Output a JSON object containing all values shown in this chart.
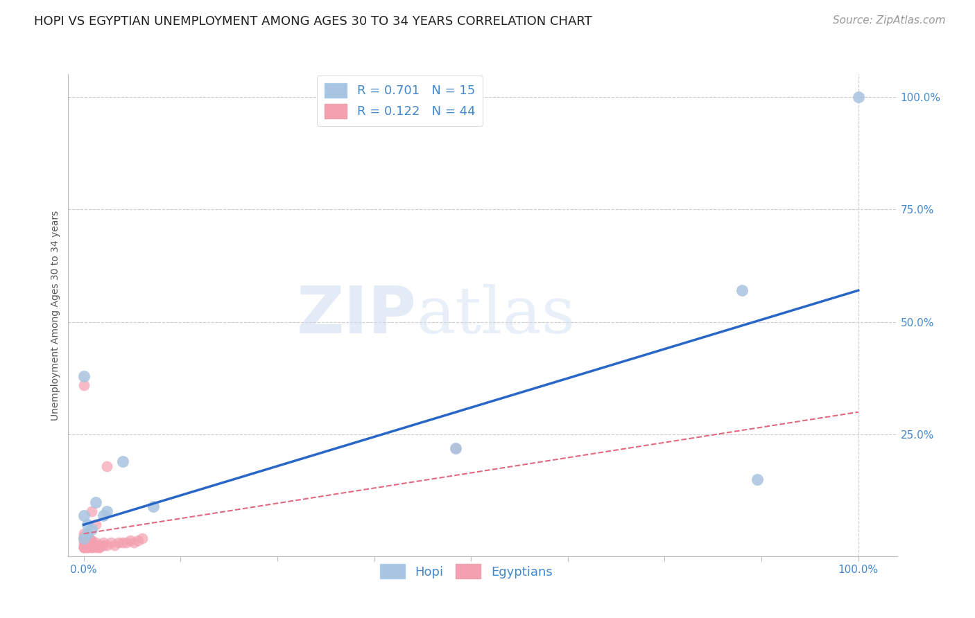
{
  "title": "HOPI VS EGYPTIAN UNEMPLOYMENT AMONG AGES 30 TO 34 YEARS CORRELATION CHART",
  "source": "Source: ZipAtlas.com",
  "ylabel": "Unemployment Among Ages 30 to 34 years",
  "xlim": [
    -0.02,
    1.05
  ],
  "ylim": [
    -0.02,
    1.05
  ],
  "xticks": [
    0.0,
    0.125,
    0.25,
    0.375,
    0.5,
    0.625,
    0.75,
    0.875,
    1.0
  ],
  "xticklabels_show": {
    "0.0": "0.0%",
    "1.0": "100.0%"
  },
  "yticks": [
    0.25,
    0.5,
    0.75,
    1.0
  ],
  "yticklabels": [
    "25.0%",
    "50.0%",
    "75.0%",
    "100.0%"
  ],
  "hopi_color": "#a8c4e0",
  "hopi_edge_color": "#7aafd4",
  "egyptian_color": "#f4a0b0",
  "egyptian_edge_color": "#e87090",
  "hopi_R": 0.701,
  "hopi_N": 15,
  "egyptian_R": 0.122,
  "egyptian_N": 44,
  "hopi_line_color": "#2866c8",
  "egyptian_line_color": "#e06880",
  "watermark_zip": "ZIP",
  "watermark_atlas": "atlas",
  "background_color": "#ffffff",
  "grid_color": "#cccccc",
  "tick_color": "#4488cc",
  "label_color": "#555555",
  "hopi_scatter": [
    [
      0.005,
      0.05
    ],
    [
      0.01,
      0.04
    ],
    [
      0.0,
      0.07
    ],
    [
      0.005,
      0.03
    ],
    [
      0.03,
      0.08
    ],
    [
      0.0,
      0.02
    ],
    [
      0.09,
      0.09
    ],
    [
      0.05,
      0.19
    ],
    [
      0.48,
      0.22
    ],
    [
      0.85,
      0.57
    ],
    [
      1.0,
      1.0
    ],
    [
      0.0,
      0.38
    ],
    [
      0.015,
      0.1
    ],
    [
      0.025,
      0.07
    ],
    [
      0.87,
      0.15
    ]
  ],
  "egyptian_scatter": [
    [
      0.0,
      0.0
    ],
    [
      0.0,
      0.01
    ],
    [
      0.0,
      0.015
    ],
    [
      0.0,
      0.02
    ],
    [
      0.0,
      0.025
    ],
    [
      0.0,
      0.03
    ],
    [
      0.005,
      0.0
    ],
    [
      0.005,
      0.005
    ],
    [
      0.005,
      0.01
    ],
    [
      0.005,
      0.015
    ],
    [
      0.007,
      0.02
    ],
    [
      0.01,
      0.0
    ],
    [
      0.01,
      0.005
    ],
    [
      0.01,
      0.01
    ],
    [
      0.01,
      0.015
    ],
    [
      0.015,
      0.0
    ],
    [
      0.015,
      0.005
    ],
    [
      0.015,
      0.01
    ],
    [
      0.02,
      0.0
    ],
    [
      0.02,
      0.005
    ],
    [
      0.025,
      0.005
    ],
    [
      0.025,
      0.01
    ],
    [
      0.03,
      0.005
    ],
    [
      0.035,
      0.01
    ],
    [
      0.04,
      0.005
    ],
    [
      0.045,
      0.01
    ],
    [
      0.05,
      0.01
    ],
    [
      0.055,
      0.01
    ],
    [
      0.06,
      0.015
    ],
    [
      0.065,
      0.01
    ],
    [
      0.07,
      0.015
    ],
    [
      0.075,
      0.02
    ],
    [
      0.0,
      0.36
    ],
    [
      0.01,
      0.08
    ],
    [
      0.015,
      0.05
    ],
    [
      0.03,
      0.18
    ],
    [
      0.48,
      0.22
    ],
    [
      0.0,
      0.0
    ],
    [
      0.0,
      0.0
    ],
    [
      0.005,
      0.0
    ],
    [
      0.0,
      0.005
    ],
    [
      0.005,
      0.005
    ],
    [
      0.01,
      0.0
    ],
    [
      0.02,
      0.0
    ]
  ],
  "hopi_line_x": [
    0.0,
    1.0
  ],
  "hopi_line_y": [
    0.05,
    0.57
  ],
  "egyptian_line_x": [
    0.0,
    1.0
  ],
  "egyptian_line_y": [
    0.03,
    0.3
  ],
  "title_fontsize": 13,
  "axis_label_fontsize": 10,
  "tick_fontsize": 11,
  "legend_fontsize": 13,
  "source_fontsize": 11
}
